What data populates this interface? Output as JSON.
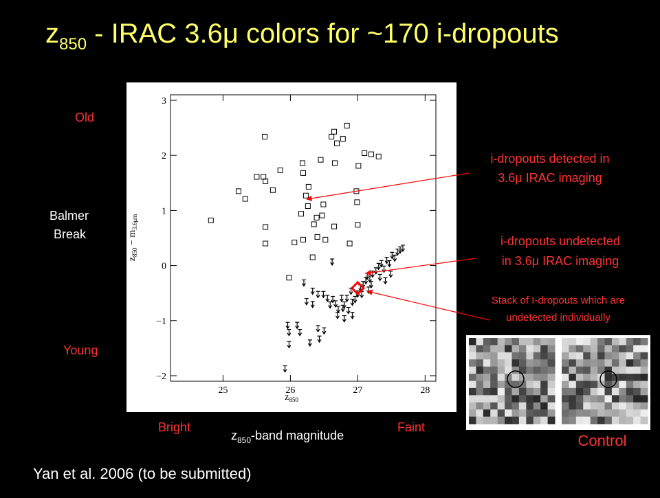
{
  "slide": {
    "title": {
      "main": "z",
      "sub": "850",
      "rest": " - IRAC 3.6μ colors for ~170 i-dropouts"
    },
    "side_labels": {
      "old": "Old",
      "balmer1": "Balmer",
      "balmer2": "Break",
      "young": "Young",
      "bright": "Bright",
      "faint": "Faint"
    },
    "x_caption": {
      "main": "z",
      "sub": "850",
      "rest": "-band magnitude"
    },
    "annotations": {
      "detected1": "i-dropouts detected in",
      "detected2": "3.6μ IRAC imaging",
      "undetected1": "i-dropouts undetected",
      "undetected2": "in 3.6μ IRAC imaging",
      "stack1": "Stack of I-dropouts which are",
      "stack2": "undetected individually"
    },
    "control": "Control",
    "citation": "Yan et al. 2006 (to be submitted)"
  },
  "chart_data": {
    "type": "scatter",
    "x_label": {
      "main": "z",
      "sub": "850"
    },
    "y_label": {
      "main": "z",
      "sub": "850",
      "mid": " − m",
      "sub2": "3.6μm"
    },
    "xlim": [
      24.22,
      28.16
    ],
    "ylim": [
      -2.1,
      3.1
    ],
    "xticks": [
      25,
      26,
      27,
      28
    ],
    "yticks": [
      {
        "value": -2,
        "label": "−2"
      },
      {
        "value": -1,
        "label": "−1"
      },
      0,
      1,
      2,
      3
    ],
    "series": [
      {
        "marker": "square",
        "color": "#000000",
        "x": [
          24.82,
          25.23,
          25.33,
          25.5,
          25.6,
          25.62,
          25.63,
          25.74,
          25.85,
          25.63,
          25.63,
          25.98,
          26.06,
          26.18,
          26.19,
          26.23,
          26.26,
          26.27,
          26.16,
          26.35,
          26.19,
          26.33,
          26.45,
          26.49,
          26.47,
          26.61,
          26.65,
          26.66,
          26.69,
          26.65,
          26.52,
          26.84,
          26.78,
          26.88,
          26.98,
          26.99,
          27.01,
          27.0,
          27.1,
          27.2,
          27.31,
          26.4,
          26.39
        ],
        "values": [
          0.82,
          1.35,
          1.21,
          1.61,
          1.61,
          2.34,
          1.53,
          1.37,
          1.73,
          0.7,
          0.4,
          -0.22,
          0.42,
          1.86,
          1.68,
          1.27,
          1.08,
          1.43,
          0.94,
          0.75,
          0.47,
          0.15,
          1.92,
          1.11,
          0.91,
          2.34,
          2.43,
          1.86,
          2.22,
          0.71,
          0.47,
          2.54,
          2.3,
          0.4,
          1.35,
          1.15,
          1.81,
          0.74,
          2.04,
          2.02,
          1.98,
          0.52,
          0.87
        ]
      },
      {
        "marker": "upper-limit",
        "color": "#000000",
        "x": [
          25.92,
          25.98,
          25.98,
          26.1,
          26.14,
          26.33,
          26.41,
          26.29,
          26.43,
          26.5,
          26.55,
          26.59,
          26.63,
          26.67,
          26.71,
          26.76,
          26.8,
          26.84,
          26.86,
          26.92,
          26.9,
          26.96,
          27.0,
          27.04,
          27.08,
          27.12,
          27.14,
          27.18,
          27.22,
          27.27,
          27.31,
          27.35,
          27.39,
          27.43,
          27.47,
          27.51,
          27.55,
          27.59,
          27.63,
          27.67,
          27.33,
          27.41,
          27.2,
          27.16,
          27.06,
          26.62,
          26.2,
          26.33,
          26.49,
          26.7,
          26.8,
          26.92,
          26.24,
          25.96,
          26.41,
          26.78,
          27.49
        ],
        "values": [
          -1.82,
          -1.16,
          -1.38,
          -1.03,
          -1.16,
          -0.65,
          -0.47,
          -1.35,
          -1.28,
          -1.13,
          -0.54,
          -0.66,
          -0.56,
          -0.64,
          -0.74,
          -0.54,
          -0.66,
          -0.54,
          -0.76,
          -0.61,
          -0.41,
          -0.56,
          -0.46,
          -0.35,
          -0.29,
          -0.22,
          -0.14,
          -0.19,
          -0.1,
          -0.04,
          0.04,
          0.09,
          -0.01,
          0.15,
          0.09,
          0.24,
          0.19,
          0.3,
          0.34,
          0.37,
          -0.16,
          -0.22,
          -0.29,
          -0.39,
          -0.47,
          0.12,
          -0.26,
          -0.41,
          -0.47,
          -0.85,
          -0.91,
          -0.85,
          -0.6,
          -1.03,
          -1.09,
          -0.72,
          -0.1
        ]
      },
      {
        "marker": "stack",
        "color": "#ff0000",
        "x": [
          27.0
        ],
        "values": [
          -0.41
        ]
      }
    ]
  }
}
